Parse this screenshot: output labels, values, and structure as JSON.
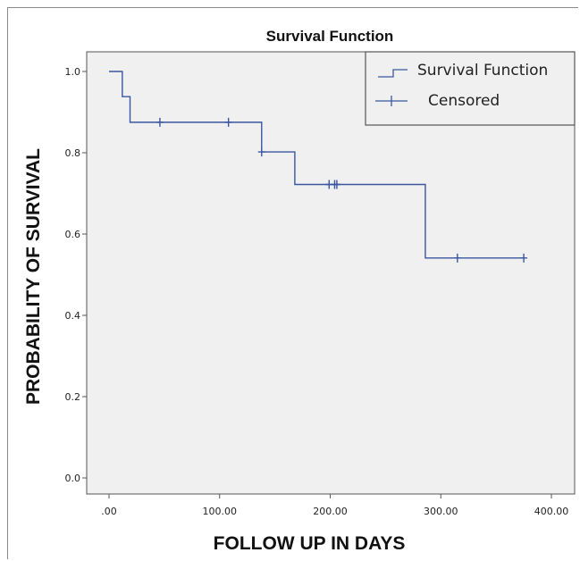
{
  "chart_data": {
    "type": "line",
    "title": "Survival Function",
    "xlabel": "FOLLOW UP IN DAYS",
    "ylabel": "PROBABILITY OF SURVIVAL",
    "xlim": [
      0,
      400
    ],
    "ylim": [
      0,
      1.0
    ],
    "x_ticks": [
      0,
      100,
      200,
      300,
      400
    ],
    "x_tick_labels": [
      ".00",
      "100.00",
      "200.00",
      "300.00",
      "400.00"
    ],
    "y_ticks": [
      0,
      0.2,
      0.4,
      0.6,
      0.8,
      1.0
    ],
    "y_tick_labels": [
      "0.0",
      "0.2",
      "0.4",
      "0.6",
      "0.8",
      "1.0"
    ],
    "grid": false,
    "legend_position": "top-right",
    "series": [
      {
        "name": "Survival Function",
        "kind": "step",
        "color": "#3a56a0",
        "x": [
          0,
          12,
          19,
          138,
          168,
          286,
          375
        ],
        "y": [
          1.0,
          0.938,
          0.875,
          0.802,
          0.722,
          0.541,
          0.541
        ]
      },
      {
        "name": "Censored",
        "kind": "marker",
        "color": "#3a56a0",
        "x": [
          46,
          108,
          138,
          199,
          204,
          206,
          315,
          375
        ],
        "y": [
          0.875,
          0.875,
          0.802,
          0.722,
          0.722,
          0.722,
          0.541,
          0.541
        ]
      }
    ],
    "colors": {
      "plot_background": "#f0f0f0",
      "line": "#3a56a0"
    }
  }
}
